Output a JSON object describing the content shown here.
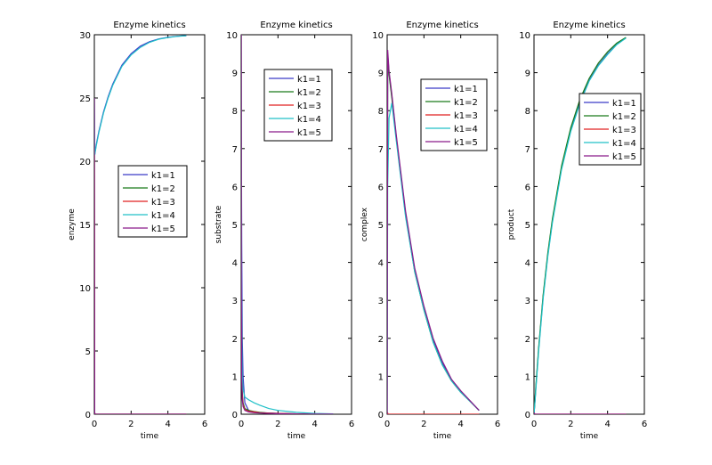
{
  "chart_data": [
    {
      "type": "line",
      "title": "Enzyme kinetics",
      "xlabel": "time",
      "ylabel": "enzyme",
      "xlim": [
        0,
        6
      ],
      "ylim": [
        0,
        30
      ],
      "xticks": [
        0,
        2,
        4,
        6
      ],
      "yticks": [
        0,
        5,
        10,
        15,
        20,
        25,
        30
      ],
      "legend": "center-right",
      "series": [
        {
          "name": "k1=1",
          "color": "#3b3bc8",
          "x": [
            0,
            0.02,
            0.1,
            0.25,
            0.5,
            0.75,
            1,
            1.5,
            2,
            2.5,
            3,
            3.5,
            4,
            4.5,
            5
          ],
          "y": [
            25,
            20.5,
            21.3,
            22.4,
            23.9,
            25.1,
            26.1,
            27.6,
            28.5,
            29.1,
            29.45,
            29.67,
            29.8,
            29.88,
            29.93
          ]
        },
        {
          "name": "k1=2",
          "color": "#1a7a1a",
          "x": [
            0,
            0.02,
            0.05,
            5
          ],
          "y": [
            25,
            0.1,
            0,
            0
          ]
        },
        {
          "name": "k1=3",
          "color": "#e02020",
          "x": [
            0,
            0.02,
            0.05,
            5
          ],
          "y": [
            25,
            0.1,
            0,
            0
          ]
        },
        {
          "name": "k1=4",
          "color": "#20c0c8",
          "x": [
            0,
            0.02,
            0.1,
            0.25,
            0.5,
            0.75,
            1,
            1.5,
            2,
            2.5,
            3,
            3.5,
            4,
            4.5,
            5
          ],
          "y": [
            25,
            20.5,
            21.2,
            22.3,
            23.8,
            25.0,
            26.0,
            27.5,
            28.4,
            29.0,
            29.4,
            29.65,
            29.78,
            29.87,
            29.92
          ]
        },
        {
          "name": "k1=5",
          "color": "#8a1a8a",
          "x": [
            0,
            0.02,
            0.05,
            5
          ],
          "y": [
            25,
            0.1,
            0,
            0
          ]
        }
      ]
    },
    {
      "type": "line",
      "title": "Enzyme kinetics",
      "xlabel": "time",
      "ylabel": "substrate",
      "xlim": [
        0,
        6
      ],
      "ylim": [
        0,
        10
      ],
      "xticks": [
        0,
        2,
        4,
        6
      ],
      "yticks": [
        0,
        1,
        2,
        3,
        4,
        5,
        6,
        7,
        8,
        9,
        10
      ],
      "legend": "top-right",
      "series": [
        {
          "name": "k1=1",
          "color": "#3b3bc8",
          "x": [
            0,
            0.01,
            0.03,
            0.06,
            0.1,
            0.2,
            0.4,
            0.7,
            1,
            1.5,
            2,
            3,
            4,
            5
          ],
          "y": [
            10,
            7.5,
            4.5,
            2.0,
            1.0,
            0.3,
            0.1,
            0.05,
            0.04,
            0.03,
            0.02,
            0.01,
            0.005,
            0.003
          ]
        },
        {
          "name": "k1=2",
          "color": "#1a7a1a",
          "x": [
            0,
            0.01,
            0.03,
            0.06,
            0.1,
            0.2,
            0.4,
            0.7,
            1,
            1.5,
            2,
            3,
            4,
            5
          ],
          "y": [
            10,
            4.5,
            1.5,
            0.6,
            0.3,
            0.15,
            0.1,
            0.07,
            0.05,
            0.03,
            0.02,
            0.01,
            0.005,
            0.003
          ]
        },
        {
          "name": "k1=3",
          "color": "#e02020",
          "x": [
            0,
            0.01,
            0.03,
            0.06,
            0.1,
            0.2,
            0.4,
            0.7,
            1,
            1.5,
            2,
            3,
            4,
            5
          ],
          "y": [
            10,
            4.0,
            1.2,
            0.5,
            0.25,
            0.12,
            0.08,
            0.06,
            0.04,
            0.03,
            0.02,
            0.01,
            0.005,
            0.003
          ]
        },
        {
          "name": "k1=4",
          "color": "#20c0c8",
          "x": [
            0,
            0.01,
            0.03,
            0.06,
            0.1,
            0.2,
            0.4,
            0.7,
            1,
            1.5,
            2,
            3,
            4,
            5
          ],
          "y": [
            10,
            5.0,
            2.0,
            1.0,
            0.65,
            0.45,
            0.38,
            0.3,
            0.24,
            0.15,
            0.1,
            0.05,
            0.02,
            0.01
          ]
        },
        {
          "name": "k1=5",
          "color": "#8a1a8a",
          "x": [
            0,
            0.01,
            0.03,
            0.06,
            0.1,
            0.2,
            0.4,
            0.7,
            1,
            1.5,
            2,
            3,
            4,
            5
          ],
          "y": [
            10,
            3.5,
            1.0,
            0.4,
            0.2,
            0.1,
            0.06,
            0.04,
            0.03,
            0.02,
            0.015,
            0.008,
            0.004,
            0.002
          ]
        }
      ]
    },
    {
      "type": "line",
      "title": "Enzyme kinetics",
      "xlabel": "time",
      "ylabel": "complex",
      "xlim": [
        0,
        6
      ],
      "ylim": [
        0,
        10
      ],
      "xticks": [
        0,
        2,
        4,
        6
      ],
      "yticks": [
        0,
        1,
        2,
        3,
        4,
        5,
        6,
        7,
        8,
        9,
        10
      ],
      "legend": "top-right",
      "series": [
        {
          "name": "k1=1",
          "color": "#3b3bc8",
          "x": [
            0,
            0.03,
            0.1,
            0.25,
            0.5,
            0.75,
            1,
            1.5,
            2,
            2.5,
            3,
            3.5,
            4,
            4.5,
            5
          ],
          "y": [
            0,
            9.5,
            9.0,
            8.4,
            7.3,
            6.3,
            5.3,
            3.8,
            2.8,
            1.95,
            1.35,
            0.9,
            0.6,
            0.35,
            0.1
          ]
        },
        {
          "name": "k1=2",
          "color": "#1a7a1a",
          "x": [
            0,
            0.03,
            0.1,
            0.25,
            0.5,
            0.75,
            1,
            1.5,
            2,
            2.5,
            3,
            3.5,
            4,
            4.5,
            5
          ],
          "y": [
            0,
            9.4,
            8.95,
            8.35,
            7.25,
            6.25,
            5.25,
            3.75,
            2.75,
            1.9,
            1.3,
            0.88,
            0.58,
            0.34,
            0.1
          ]
        },
        {
          "name": "k1=3",
          "color": "#e02020",
          "x": [
            0,
            0.02,
            0.05,
            5
          ],
          "y": [
            0,
            0.05,
            0,
            0
          ]
        },
        {
          "name": "k1=4",
          "color": "#20c0c8",
          "x": [
            0,
            0.03,
            0.1,
            0.25,
            0.5,
            0.75,
            1,
            1.5,
            2,
            2.5,
            3,
            3.5,
            4,
            4.5,
            5
          ],
          "y": [
            0,
            6.0,
            7.8,
            8.2,
            7.2,
            6.2,
            5.2,
            3.75,
            2.75,
            1.9,
            1.3,
            0.88,
            0.58,
            0.34,
            0.1
          ]
        },
        {
          "name": "k1=5",
          "color": "#8a1a8a",
          "x": [
            0,
            0.03,
            0.1,
            0.25,
            0.5,
            0.75,
            1,
            1.5,
            2,
            2.5,
            3,
            3.5,
            4,
            4.5,
            5
          ],
          "y": [
            0,
            9.6,
            9.05,
            8.45,
            7.35,
            6.35,
            5.35,
            3.85,
            2.85,
            2.0,
            1.4,
            0.92,
            0.62,
            0.36,
            0.1
          ]
        }
      ]
    },
    {
      "type": "line",
      "title": "Enzyme kinetics",
      "xlabel": "time",
      "ylabel": "product",
      "xlim": [
        0,
        6
      ],
      "ylim": [
        0,
        10
      ],
      "xticks": [
        0,
        2,
        4,
        6
      ],
      "yticks": [
        0,
        1,
        2,
        3,
        4,
        5,
        6,
        7,
        8,
        9,
        10
      ],
      "legend": "top-right",
      "series": [
        {
          "name": "k1=1",
          "color": "#3b3bc8",
          "x": [
            0,
            0.05,
            0.1,
            0.25,
            0.5,
            0.75,
            1,
            1.5,
            2,
            2.5,
            3,
            3.5,
            4,
            4.5,
            5
          ],
          "y": [
            0,
            0.3,
            0.7,
            1.7,
            3.1,
            4.2,
            5.1,
            6.5,
            7.5,
            8.25,
            8.8,
            9.2,
            9.5,
            9.75,
            9.92
          ]
        },
        {
          "name": "k1=2",
          "color": "#1a7a1a",
          "x": [
            0,
            0.05,
            0.1,
            0.25,
            0.5,
            0.75,
            1,
            1.5,
            2,
            2.5,
            3,
            3.5,
            4,
            4.5,
            5
          ],
          "y": [
            0,
            0.35,
            0.75,
            1.75,
            3.15,
            4.25,
            5.15,
            6.55,
            7.55,
            8.3,
            8.85,
            9.25,
            9.55,
            9.78,
            9.93
          ]
        },
        {
          "name": "k1=3",
          "color": "#e02020",
          "x": [
            0,
            0.02,
            0.05,
            5
          ],
          "y": [
            0,
            0.02,
            0,
            0
          ]
        },
        {
          "name": "k1=4",
          "color": "#20c0c8",
          "x": [
            0,
            0.05,
            0.1,
            0.25,
            0.5,
            0.75,
            1,
            1.5,
            2,
            2.5,
            3,
            3.5,
            4,
            4.5,
            5
          ],
          "y": [
            0,
            0.3,
            0.65,
            1.65,
            3.05,
            4.15,
            5.05,
            6.45,
            7.45,
            8.2,
            8.78,
            9.18,
            9.48,
            9.74,
            9.91
          ]
        },
        {
          "name": "k1=5",
          "color": "#8a1a8a",
          "x": [
            0,
            0.02,
            0.05,
            5
          ],
          "y": [
            0,
            0.02,
            0,
            0
          ]
        }
      ]
    }
  ]
}
